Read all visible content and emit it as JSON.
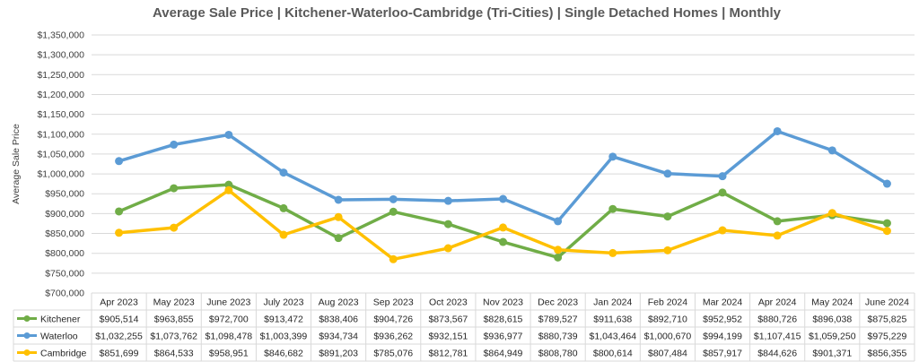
{
  "chart_data": {
    "type": "line",
    "title": "Average Sale Price | Kitchener-Waterloo-Cambridge (Tri-Cities) | Single Detached Homes | Monthly",
    "ylabel": "Average Sale Price",
    "xlabel": "",
    "ylim": [
      700000,
      1350000
    ],
    "ytick_step": 50000,
    "ytick_labels": [
      "$700,000",
      "$750,000",
      "$800,000",
      "$850,000",
      "$900,000",
      "$950,000",
      "$1,000,000",
      "$1,050,000",
      "$1,100,000",
      "$1,150,000",
      "$1,200,000",
      "$1,250,000",
      "$1,300,000",
      "$1,350,000"
    ],
    "grid": true,
    "legend": "data-table-below",
    "categories": [
      "Apr 2023",
      "May 2023",
      "June 2023",
      "July 2023",
      "Aug 2023",
      "Sep 2023",
      "Oct 2023",
      "Nov 2023",
      "Dec 2023",
      "Jan 2024",
      "Feb 2024",
      "Mar 2024",
      "Apr 2024",
      "May 2024",
      "June 2024"
    ],
    "series": [
      {
        "name": "Kitchener",
        "color": "#70ad47",
        "values": [
          905514,
          963855,
          972700,
          913472,
          838406,
          904726,
          873567,
          828615,
          789527,
          911638,
          892710,
          952952,
          880726,
          896038,
          875825
        ],
        "labels": [
          "$905,514",
          "$963,855",
          "$972,700",
          "$913,472",
          "$838,406",
          "$904,726",
          "$873,567",
          "$828,615",
          "$789,527",
          "$911,638",
          "$892,710",
          "$952,952",
          "$880,726",
          "$896,038",
          "$875,825"
        ]
      },
      {
        "name": "Waterloo",
        "color": "#5b9bd5",
        "values": [
          1032255,
          1073762,
          1098478,
          1003399,
          934734,
          936262,
          932151,
          936977,
          880739,
          1043464,
          1000670,
          994199,
          1107415,
          1059250,
          975229
        ],
        "labels": [
          "$1,032,255",
          "$1,073,762",
          "$1,098,478",
          "$1,003,399",
          "$934,734",
          "$936,262",
          "$932,151",
          "$936,977",
          "$880,739",
          "$1,043,464",
          "$1,000,670",
          "$994,199",
          "$1,107,415",
          "$1,059,250",
          "$975,229"
        ]
      },
      {
        "name": "Cambridge",
        "color": "#ffc000",
        "values": [
          851699,
          864533,
          958951,
          846682,
          891203,
          785076,
          812781,
          864949,
          808780,
          800614,
          807484,
          857917,
          844626,
          901371,
          856355
        ],
        "labels": [
          "$851,699",
          "$864,533",
          "$958,951",
          "$846,682",
          "$891,203",
          "$785,076",
          "$812,781",
          "$864,949",
          "$808,780",
          "$800,614",
          "$807,484",
          "$857,917",
          "$844,626",
          "$901,371",
          "$856,355"
        ]
      }
    ]
  }
}
